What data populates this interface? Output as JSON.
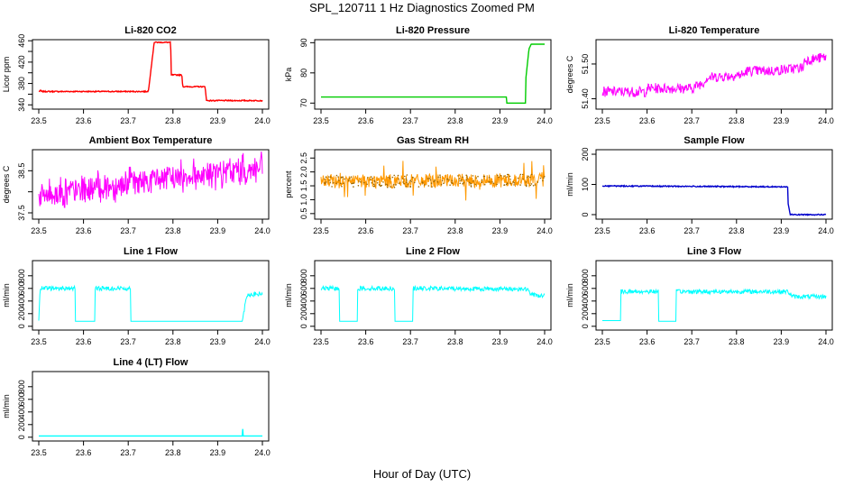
{
  "figure": {
    "title": "SPL_120711  1 Hz Diagnostics Zoomed PM",
    "xlabel": "Hour of Day (UTC)"
  },
  "chart_data": [
    {
      "type": "line",
      "title": "Li-820 CO2",
      "xlabel": "",
      "ylabel": "Licor ppm",
      "xlim": [
        23.5,
        24.0
      ],
      "ylim": [
        332,
        462
      ],
      "xticks": [
        "23.5",
        "23.6",
        "23.7",
        "23.8",
        "23.9",
        "24.0"
      ],
      "yticks": [
        "340",
        "360",
        "380",
        "400",
        "420",
        "440",
        "460"
      ],
      "yticks_labeled": [
        "340",
        "380",
        "420",
        "460"
      ],
      "color": "#ff0000",
      "noise": "low",
      "series": [
        {
          "x": [
            23.5,
            23.505,
            23.505,
            23.745,
            23.758,
            23.759,
            23.795,
            23.796,
            23.82,
            23.822,
            23.872,
            23.875,
            23.96,
            24.0
          ],
          "y": [
            365,
            367,
            365,
            365,
            457,
            457,
            457,
            396,
            396,
            374,
            374,
            348,
            348,
            348
          ]
        }
      ]
    },
    {
      "type": "line",
      "title": "Li-820 Pressure",
      "xlabel": "",
      "ylabel": "kPa",
      "xlim": [
        23.5,
        24.0
      ],
      "ylim": [
        68,
        91
      ],
      "xticks": [
        "23.5",
        "23.6",
        "23.7",
        "23.8",
        "23.9",
        "24.0"
      ],
      "yticks": [
        "70",
        "80",
        "90"
      ],
      "color": "#00cc00",
      "noise": "flat",
      "series": [
        {
          "x": [
            23.5,
            23.915,
            23.915,
            23.958,
            23.958,
            23.965,
            23.97,
            24.0
          ],
          "y": [
            72,
            72,
            70,
            70,
            78,
            88,
            89.5,
            89.5
          ]
        }
      ]
    },
    {
      "type": "line",
      "title": "Li-820 Temperature",
      "xlabel": "",
      "ylabel": "degrees C",
      "xlim": [
        23.5,
        24.0
      ],
      "ylim": [
        51.37,
        51.57
      ],
      "xticks": [
        "23.5",
        "23.6",
        "23.7",
        "23.8",
        "23.9",
        "24.0"
      ],
      "yticks": [
        "51.40",
        "51.50"
      ],
      "color": "#ff00ff",
      "noise": "band",
      "series": [
        {
          "x": [
            23.5,
            23.6,
            23.6,
            23.7,
            23.73,
            23.73,
            23.82,
            23.82,
            23.88,
            23.95,
            23.95,
            24.0
          ],
          "y": [
            51.42,
            51.42,
            51.43,
            51.43,
            51.45,
            51.46,
            51.47,
            51.48,
            51.48,
            51.49,
            51.51,
            51.52
          ]
        }
      ],
      "band": 0.03
    },
    {
      "type": "line",
      "title": "Ambient Box Temperature",
      "xlabel": "",
      "ylabel": "degrees C",
      "xlim": [
        23.5,
        24.0
      ],
      "ylim": [
        37.35,
        39.0
      ],
      "xticks": [
        "23.5",
        "23.6",
        "23.7",
        "23.8",
        "23.9",
        "24.0"
      ],
      "yticks": [
        "37.5",
        "38.0",
        "38.5"
      ],
      "yticks_labeled": [
        "37.5",
        "38.5"
      ],
      "color": "#ff00ff",
      "noise": "spiky",
      "series": [
        {
          "x": [
            23.5,
            23.6,
            23.7,
            23.8,
            23.9,
            24.0
          ],
          "y": [
            37.9,
            38.05,
            38.2,
            38.35,
            38.45,
            38.55
          ]
        }
      ],
      "band": 0.55
    },
    {
      "type": "line",
      "title": "Gas Stream RH",
      "xlabel": "",
      "ylabel": "percent",
      "xlim": [
        23.5,
        24.0
      ],
      "ylim": [
        0.3,
        2.8
      ],
      "xticks": [
        "23.5",
        "23.6",
        "23.7",
        "23.8",
        "23.9",
        "24.0"
      ],
      "yticks": [
        "0.5",
        "1.0",
        "1.5",
        "2.0",
        "2.5"
      ],
      "color": "#ff9900",
      "noise": "dense",
      "series": [
        {
          "x": [
            23.5,
            24.0
          ],
          "y": [
            1.65,
            1.7
          ]
        }
      ],
      "band": 0.5
    },
    {
      "type": "line",
      "title": "Sample Flow",
      "xlabel": "",
      "ylabel": "ml/min",
      "xlim": [
        23.5,
        24.0
      ],
      "ylim": [
        -15,
        215
      ],
      "xticks": [
        "23.5",
        "23.6",
        "23.7",
        "23.8",
        "23.9",
        "24.0"
      ],
      "yticks": [
        "0",
        "100",
        "200"
      ],
      "color": "#0000cc",
      "noise": "low",
      "series": [
        {
          "x": [
            23.5,
            23.915,
            23.915,
            23.92,
            24.0
          ],
          "y": [
            95,
            92,
            40,
            0,
            0
          ]
        }
      ]
    },
    {
      "type": "line",
      "title": "Line 1 Flow",
      "xlabel": "",
      "ylabel": "ml/min",
      "xlim": [
        23.5,
        24.0
      ],
      "ylim": [
        -60,
        1040
      ],
      "xticks": [
        "23.5",
        "23.6",
        "23.7",
        "23.8",
        "23.9",
        "24.0"
      ],
      "yticks": [
        "0",
        "200",
        "400",
        "600",
        "800"
      ],
      "color": "#00ffff",
      "noise": "flow",
      "series": [
        {
          "x": [
            23.5,
            23.503,
            23.582,
            23.582,
            23.625,
            23.625,
            23.705,
            23.705,
            23.955,
            23.965,
            24.0
          ],
          "y": [
            90,
            600,
            600,
            80,
            80,
            600,
            600,
            80,
            80,
            500,
            510
          ]
        }
      ]
    },
    {
      "type": "line",
      "title": "Line 2 Flow",
      "xlabel": "",
      "ylabel": "ml/min",
      "xlim": [
        23.5,
        24.0
      ],
      "ylim": [
        -60,
        1040
      ],
      "xticks": [
        "23.5",
        "23.6",
        "23.7",
        "23.8",
        "23.9",
        "24.0"
      ],
      "yticks": [
        "0",
        "200",
        "400",
        "600",
        "800"
      ],
      "color": "#00ffff",
      "noise": "flow",
      "series": [
        {
          "x": [
            23.5,
            23.541,
            23.541,
            23.582,
            23.582,
            23.665,
            23.665,
            23.705,
            23.705,
            23.96,
            23.97,
            24.0
          ],
          "y": [
            600,
            600,
            80,
            80,
            600,
            600,
            80,
            80,
            600,
            590,
            500,
            480
          ]
        }
      ]
    },
    {
      "type": "line",
      "title": "Line 3 Flow",
      "xlabel": "",
      "ylabel": "ml/min",
      "xlim": [
        23.5,
        24.0
      ],
      "ylim": [
        -60,
        1040
      ],
      "xticks": [
        "23.5",
        "23.6",
        "23.7",
        "23.8",
        "23.9",
        "24.0"
      ],
      "yticks": [
        "0",
        "200",
        "400",
        "600",
        "800"
      ],
      "color": "#00ffff",
      "noise": "flow",
      "series": [
        {
          "x": [
            23.5,
            23.5,
            23.541,
            23.541,
            23.625,
            23.625,
            23.665,
            23.665,
            23.915,
            23.925,
            24.0
          ],
          "y": [
            480,
            90,
            90,
            550,
            550,
            80,
            80,
            550,
            550,
            470,
            470
          ]
        }
      ]
    },
    {
      "type": "line",
      "title": "Line 4 (LT) Flow",
      "xlabel": "",
      "ylabel": "ml/min",
      "xlim": [
        23.5,
        24.0
      ],
      "ylim": [
        -60,
        1040
      ],
      "xticks": [
        "23.5",
        "23.6",
        "23.7",
        "23.8",
        "23.9",
        "24.0"
      ],
      "yticks": [
        "0",
        "200",
        "400",
        "600",
        "800"
      ],
      "color": "#00ffff",
      "noise": "flat",
      "series": [
        {
          "x": [
            23.5,
            23.955,
            23.955,
            23.957,
            23.957,
            24.0
          ],
          "y": [
            20,
            20,
            130,
            130,
            20,
            20
          ]
        }
      ]
    }
  ]
}
